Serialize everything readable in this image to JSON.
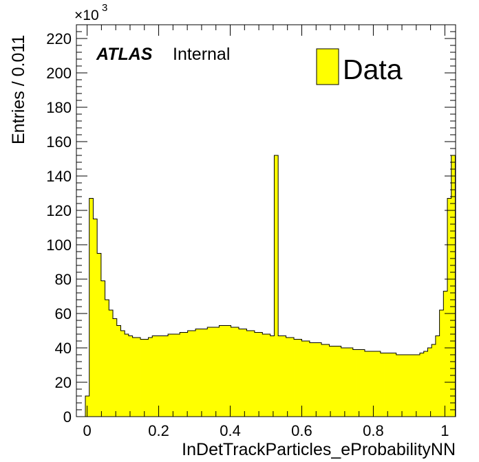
{
  "chart_data": {
    "type": "bar",
    "xlabel": "InDetTrackParticles_eProbabilityNN",
    "ylabel": "Entries / 0.011",
    "y_multiplier": "×10",
    "y_multiplier_exp": "3",
    "xlim": [
      -0.03,
      1.03
    ],
    "ylim": [
      0,
      228
    ],
    "bin_width": 0.011,
    "first_bin_low": -0.005,
    "x_ticks": [
      "0",
      "0.2",
      "0.4",
      "0.6",
      "0.8",
      "1"
    ],
    "y_ticks": [
      "0",
      "20",
      "40",
      "60",
      "80",
      "100",
      "120",
      "140",
      "160",
      "180",
      "200",
      "220"
    ],
    "fill_color": "#ffff00",
    "line_color": "#000000",
    "experiment_label": "ATLAS",
    "status_label": "Internal",
    "series": [
      {
        "name": "Data",
        "values": [
          12,
          127,
          115,
          95,
          79,
          68,
          62,
          57,
          53,
          50,
          48,
          47,
          46,
          46,
          45,
          45,
          46,
          47,
          47,
          47,
          47,
          48,
          48,
          48,
          49,
          49,
          50,
          50,
          51,
          51,
          51,
          52,
          52,
          52,
          53,
          53,
          53,
          52,
          52,
          51,
          51,
          50,
          50,
          49,
          49,
          48,
          48,
          47,
          152,
          47,
          47,
          46,
          46,
          45,
          45,
          44,
          44,
          43,
          43,
          43,
          42,
          42,
          41,
          41,
          41,
          40,
          40,
          40,
          39,
          39,
          39,
          38,
          38,
          38,
          38,
          37,
          37,
          37,
          37,
          36,
          36,
          36,
          36,
          36,
          36,
          37,
          38,
          40,
          42,
          47,
          62,
          73,
          127,
          152
        ]
      }
    ]
  }
}
